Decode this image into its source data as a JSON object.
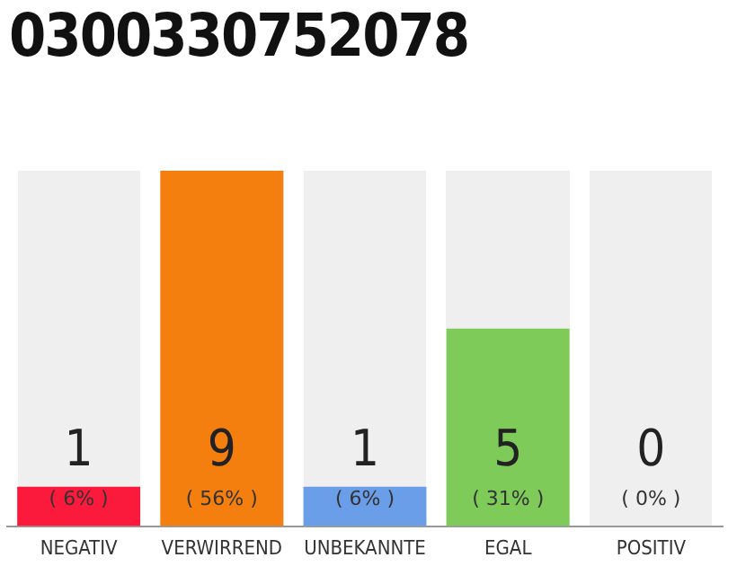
{
  "chart_data": {
    "type": "bar",
    "title": "0300330752078",
    "categories": [
      "NEGATIV",
      "VERWIRREND",
      "UNBEKANNTE",
      "EGAL",
      "POSITIV"
    ],
    "values": [
      1,
      9,
      1,
      5,
      0
    ],
    "colors": [
      "#fb1a3c",
      "#f47f0f",
      "#6a9ee8",
      "#7ecb5a",
      "#bbbbbb"
    ],
    "value_labels": [
      "1\n( 6% )",
      "9\n( 56% )",
      "1\n( 6% )",
      "5\n( 31% )",
      "0\n( 0% )"
    ],
    "ylim": [
      0,
      9
    ],
    "tick_labels": "x",
    "grid": false
  }
}
